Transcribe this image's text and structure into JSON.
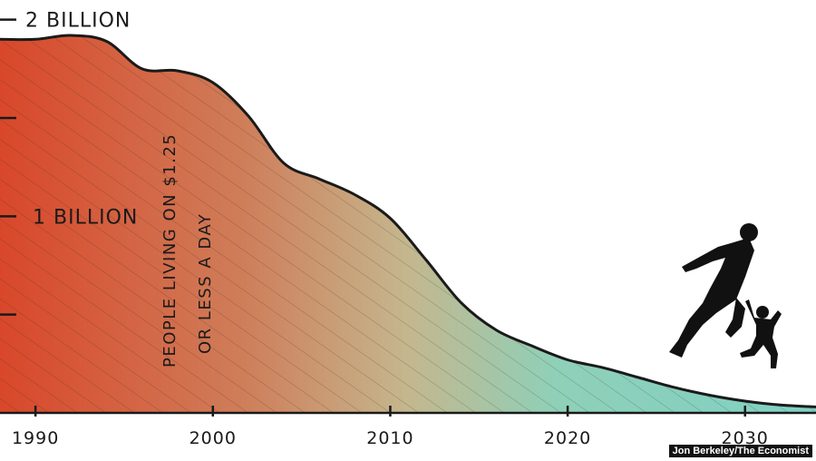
{
  "chart_data": {
    "type": "area",
    "title": "",
    "xlabel": "",
    "ylabel": "",
    "annotation": [
      "PEOPLE LIVING ON $1.25",
      "OR LESS A DAY"
    ],
    "x_ticks": [
      "1990",
      "2000",
      "2010",
      "2020",
      "2030"
    ],
    "y_tick_labels": [
      {
        "value": 2000000000,
        "label": "2 BILLION"
      },
      {
        "value": 1000000000,
        "label": "1 BILLION"
      }
    ],
    "y_tick_marks": [
      500000000,
      1000000000,
      1500000000,
      2000000000
    ],
    "xlim": [
      1988,
      2034
    ],
    "ylim": [
      0,
      2100000000
    ],
    "grid": false,
    "colors": {
      "high": "#d9472a",
      "mid_warm": "#cf7e5a",
      "mid": "#c4b78e",
      "low": "#8fd0b8",
      "end": "#7fd1c4",
      "outline": "#1a1a1a"
    },
    "series": [
      {
        "x": [
          1988,
          1990,
          1992,
          1994,
          1996,
          1998,
          2000,
          2002,
          2004,
          2006,
          2008,
          2010,
          2012,
          2014,
          2016,
          2018,
          2020,
          2022,
          2024,
          2026,
          2028,
          2030,
          2032,
          2034
        ],
        "values": [
          1900000000,
          1900000000,
          1920000000,
          1890000000,
          1750000000,
          1740000000,
          1680000000,
          1510000000,
          1270000000,
          1190000000,
          1110000000,
          990000000,
          780000000,
          560000000,
          420000000,
          340000000,
          270000000,
          230000000,
          180000000,
          130000000,
          90000000,
          60000000,
          40000000,
          30000000
        ]
      }
    ],
    "credit": "Jon Berkeley/The Economist",
    "illustration": [
      "man-running-icon",
      "child-running-icon"
    ]
  }
}
